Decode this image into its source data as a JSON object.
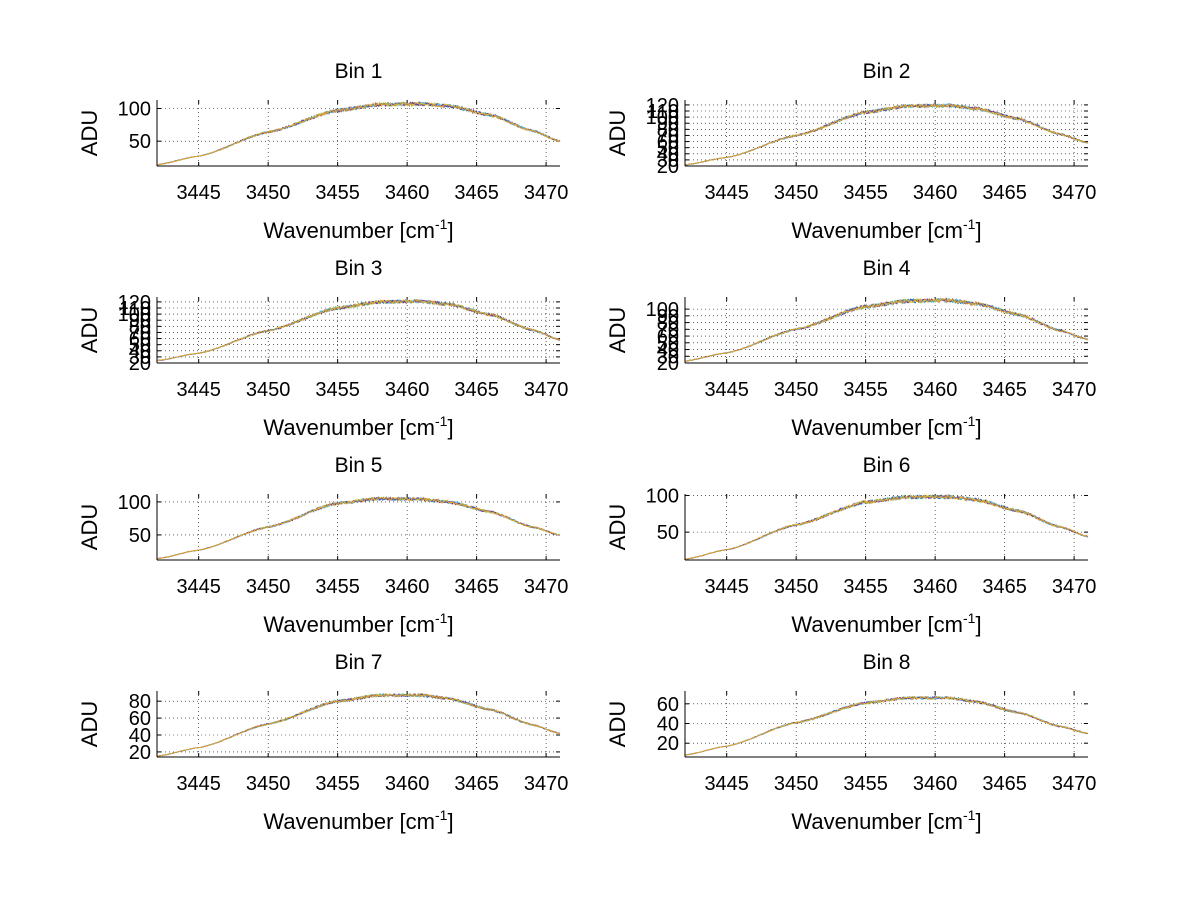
{
  "chart_data": [
    {
      "type": "line",
      "title": "Bin 1",
      "xlabel": "Wavenumber [cm",
      "xlabel_sup": "-1",
      "xlabel_tail": "]",
      "ylabel": "ADU",
      "xlim": [
        3442,
        3471
      ],
      "ylim": [
        12,
        113
      ],
      "xticks": [
        3445,
        3450,
        3455,
        3460,
        3465,
        3470
      ],
      "yticks": [
        50,
        100
      ],
      "grid": true,
      "x": [
        3442,
        3445,
        3450,
        3455,
        3458,
        3461,
        3463,
        3466,
        3469,
        3471
      ],
      "y": [
        14,
        27,
        64,
        97,
        106,
        107,
        104,
        90,
        66,
        50
      ],
      "noise": 3,
      "series": [
        {
          "color": "#0072bd"
        },
        {
          "color": "#77ac30"
        },
        {
          "color": "#4dbeee"
        },
        {
          "color": "#7e2f8e"
        },
        {
          "color": "#edb120"
        }
      ]
    },
    {
      "type": "line",
      "title": "Bin 2",
      "xlabel": "Wavenumber [cm",
      "xlabel_sup": "-1",
      "xlabel_tail": "]",
      "ylabel": "ADU",
      "xlim": [
        3442,
        3471
      ],
      "ylim": [
        20,
        128
      ],
      "xticks": [
        3445,
        3450,
        3455,
        3460,
        3465,
        3470
      ],
      "yticks": [
        20,
        30,
        40,
        50,
        60,
        70,
        80,
        90,
        100,
        110,
        120
      ],
      "grid": true,
      "x": [
        3442,
        3445,
        3450,
        3455,
        3458,
        3461,
        3463,
        3466,
        3469,
        3471
      ],
      "y": [
        22,
        34,
        70,
        108,
        118,
        119,
        114,
        97,
        72,
        58
      ],
      "noise": 3,
      "series": [
        {
          "color": "#0072bd"
        },
        {
          "color": "#77ac30"
        },
        {
          "color": "#4dbeee"
        },
        {
          "color": "#7e2f8e"
        },
        {
          "color": "#edb120"
        }
      ]
    },
    {
      "type": "line",
      "title": "Bin 3",
      "xlabel": "Wavenumber [cm",
      "xlabel_sup": "-1",
      "xlabel_tail": "]",
      "ylabel": "ADU",
      "xlim": [
        3442,
        3471
      ],
      "ylim": [
        20,
        128
      ],
      "xticks": [
        3445,
        3450,
        3455,
        3460,
        3465,
        3470
      ],
      "yticks": [
        20,
        30,
        40,
        50,
        60,
        70,
        80,
        90,
        100,
        110,
        120
      ],
      "grid": true,
      "x": [
        3442,
        3445,
        3450,
        3455,
        3458,
        3461,
        3463,
        3466,
        3469,
        3471
      ],
      "y": [
        24,
        36,
        73,
        110,
        120,
        121,
        116,
        99,
        74,
        58
      ],
      "noise": 3,
      "series": [
        {
          "color": "#0072bd"
        },
        {
          "color": "#77ac30"
        },
        {
          "color": "#4dbeee"
        },
        {
          "color": "#7e2f8e"
        },
        {
          "color": "#edb120"
        }
      ]
    },
    {
      "type": "line",
      "title": "Bin 4",
      "xlabel": "Wavenumber [cm",
      "xlabel_sup": "-1",
      "xlabel_tail": "]",
      "ylabel": "ADU",
      "xlim": [
        3442,
        3471
      ],
      "ylim": [
        20,
        118
      ],
      "xticks": [
        3445,
        3450,
        3455,
        3460,
        3465,
        3470
      ],
      "yticks": [
        20,
        30,
        40,
        50,
        60,
        70,
        80,
        90,
        100
      ],
      "grid": true,
      "x": [
        3442,
        3445,
        3450,
        3455,
        3458,
        3461,
        3463,
        3466,
        3469,
        3471
      ],
      "y": [
        23,
        35,
        70,
        104,
        112,
        113,
        108,
        92,
        68,
        55
      ],
      "noise": 3,
      "series": [
        {
          "color": "#0072bd"
        },
        {
          "color": "#77ac30"
        },
        {
          "color": "#4dbeee"
        },
        {
          "color": "#7e2f8e"
        },
        {
          "color": "#edb120"
        }
      ]
    },
    {
      "type": "line",
      "title": "Bin 5",
      "xlabel": "Wavenumber [cm",
      "xlabel_sup": "-1",
      "xlabel_tail": "]",
      "ylabel": "ADU",
      "xlim": [
        3442,
        3471
      ],
      "ylim": [
        12,
        112
      ],
      "xticks": [
        3445,
        3450,
        3455,
        3460,
        3465,
        3470
      ],
      "yticks": [
        50,
        100
      ],
      "grid": true,
      "x": [
        3442,
        3445,
        3450,
        3455,
        3458,
        3461,
        3463,
        3466,
        3469,
        3471
      ],
      "y": [
        14,
        27,
        62,
        98,
        105,
        104,
        100,
        85,
        62,
        50
      ],
      "noise": 2.5,
      "series": [
        {
          "color": "#0072bd"
        },
        {
          "color": "#77ac30"
        },
        {
          "color": "#4dbeee"
        },
        {
          "color": "#7e2f8e"
        },
        {
          "color": "#edb120"
        }
      ]
    },
    {
      "type": "line",
      "title": "Bin 6",
      "xlabel": "Wavenumber [cm",
      "xlabel_sup": "-1",
      "xlabel_tail": "]",
      "ylabel": "ADU",
      "xlim": [
        3442,
        3471
      ],
      "ylim": [
        12,
        102
      ],
      "xticks": [
        3445,
        3450,
        3455,
        3460,
        3465,
        3470
      ],
      "yticks": [
        50,
        100
      ],
      "grid": true,
      "x": [
        3442,
        3445,
        3450,
        3455,
        3458,
        3461,
        3463,
        3466,
        3469,
        3471
      ],
      "y": [
        13,
        26,
        60,
        91,
        98,
        98,
        94,
        79,
        57,
        44
      ],
      "noise": 2.5,
      "series": [
        {
          "color": "#0072bd"
        },
        {
          "color": "#77ac30"
        },
        {
          "color": "#4dbeee"
        },
        {
          "color": "#7e2f8e"
        },
        {
          "color": "#edb120"
        }
      ]
    },
    {
      "type": "line",
      "title": "Bin 7",
      "xlabel": "Wavenumber [cm",
      "xlabel_sup": "-1",
      "xlabel_tail": "]",
      "ylabel": "ADU",
      "xlim": [
        3442,
        3471
      ],
      "ylim": [
        14,
        92
      ],
      "xticks": [
        3445,
        3450,
        3455,
        3460,
        3465,
        3470
      ],
      "yticks": [
        20,
        40,
        60,
        80
      ],
      "grid": true,
      "x": [
        3442,
        3445,
        3450,
        3455,
        3458,
        3461,
        3463,
        3466,
        3469,
        3471
      ],
      "y": [
        15,
        25,
        53,
        80,
        87,
        87,
        83,
        70,
        52,
        42
      ],
      "noise": 1.8,
      "series": [
        {
          "color": "#0072bd"
        },
        {
          "color": "#77ac30"
        },
        {
          "color": "#4dbeee"
        },
        {
          "color": "#7e2f8e"
        },
        {
          "color": "#edb120"
        }
      ]
    },
    {
      "type": "line",
      "title": "Bin 8",
      "xlabel": "Wavenumber [cm",
      "xlabel_sup": "-1",
      "xlabel_tail": "]",
      "ylabel": "ADU",
      "xlim": [
        3442,
        3471
      ],
      "ylim": [
        6,
        73
      ],
      "xticks": [
        3445,
        3450,
        3455,
        3460,
        3465,
        3470
      ],
      "yticks": [
        20,
        40,
        60
      ],
      "grid": true,
      "x": [
        3442,
        3445,
        3450,
        3455,
        3458,
        3461,
        3463,
        3466,
        3469,
        3471
      ],
      "y": [
        8,
        17,
        41,
        61,
        66,
        66,
        62,
        51,
        37,
        30
      ],
      "noise": 1.5,
      "series": [
        {
          "color": "#0072bd"
        },
        {
          "color": "#77ac30"
        },
        {
          "color": "#4dbeee"
        },
        {
          "color": "#7e2f8e"
        },
        {
          "color": "#edb120"
        }
      ]
    }
  ]
}
